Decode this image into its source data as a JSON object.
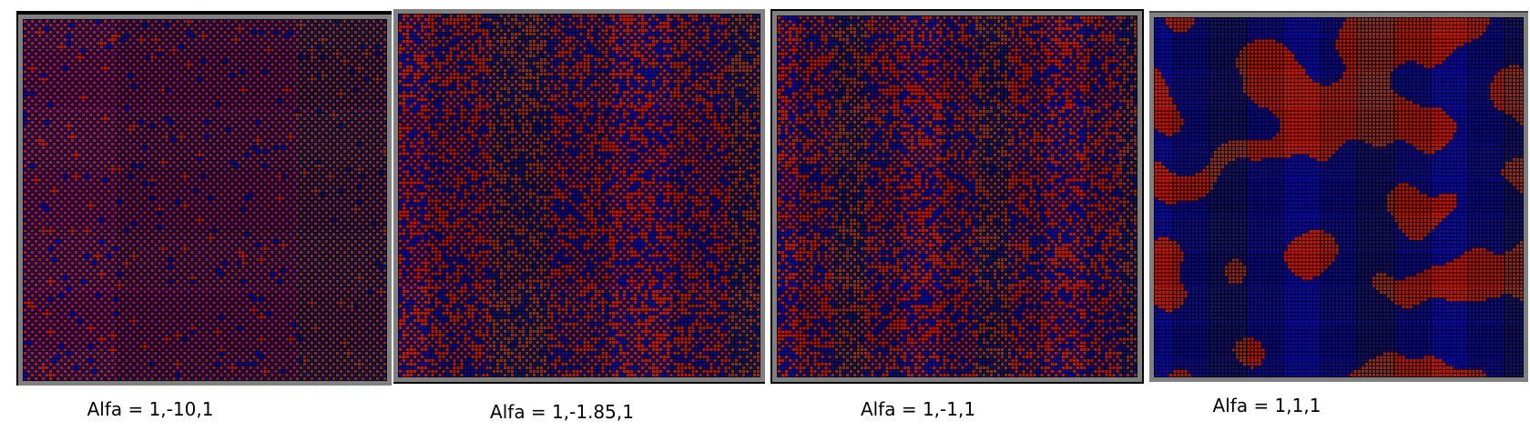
{
  "colors": {
    "red": "#c01800",
    "blue": "#0a0a9a",
    "grid": "#000000",
    "frame": "#808080"
  },
  "panels": [
    {
      "caption": "Alfa = 1,-10,1",
      "pattern": "checkerboard-ordered"
    },
    {
      "caption": "Alfa = 1,-1.85,1",
      "pattern": "checkerboard-disordered"
    },
    {
      "caption": "Alfa = 1,-1,1",
      "pattern": "random-mixed"
    },
    {
      "caption": "Alfa = 1,1,1",
      "pattern": "phase-separated-domains"
    }
  ]
}
